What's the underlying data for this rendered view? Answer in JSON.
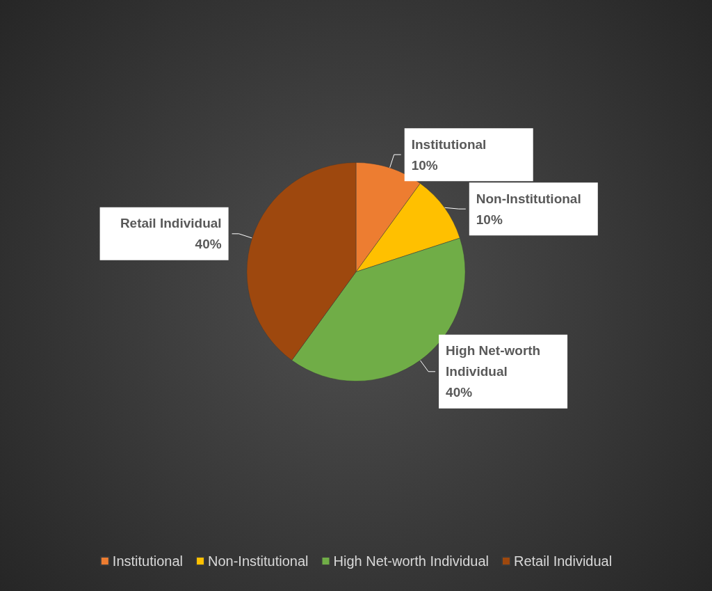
{
  "chart_data": {
    "type": "pie",
    "categories": [
      "Institutional",
      "Non-Institutional",
      "High Net-worth Individual",
      "Retail Individual"
    ],
    "values": [
      10,
      10,
      40,
      40
    ],
    "colors": [
      "#ed7d31",
      "#ffc000",
      "#70ad47",
      "#9e480e"
    ],
    "value_labels": [
      "10%",
      "10%",
      "40%",
      "40%"
    ],
    "legend": "bottom"
  }
}
